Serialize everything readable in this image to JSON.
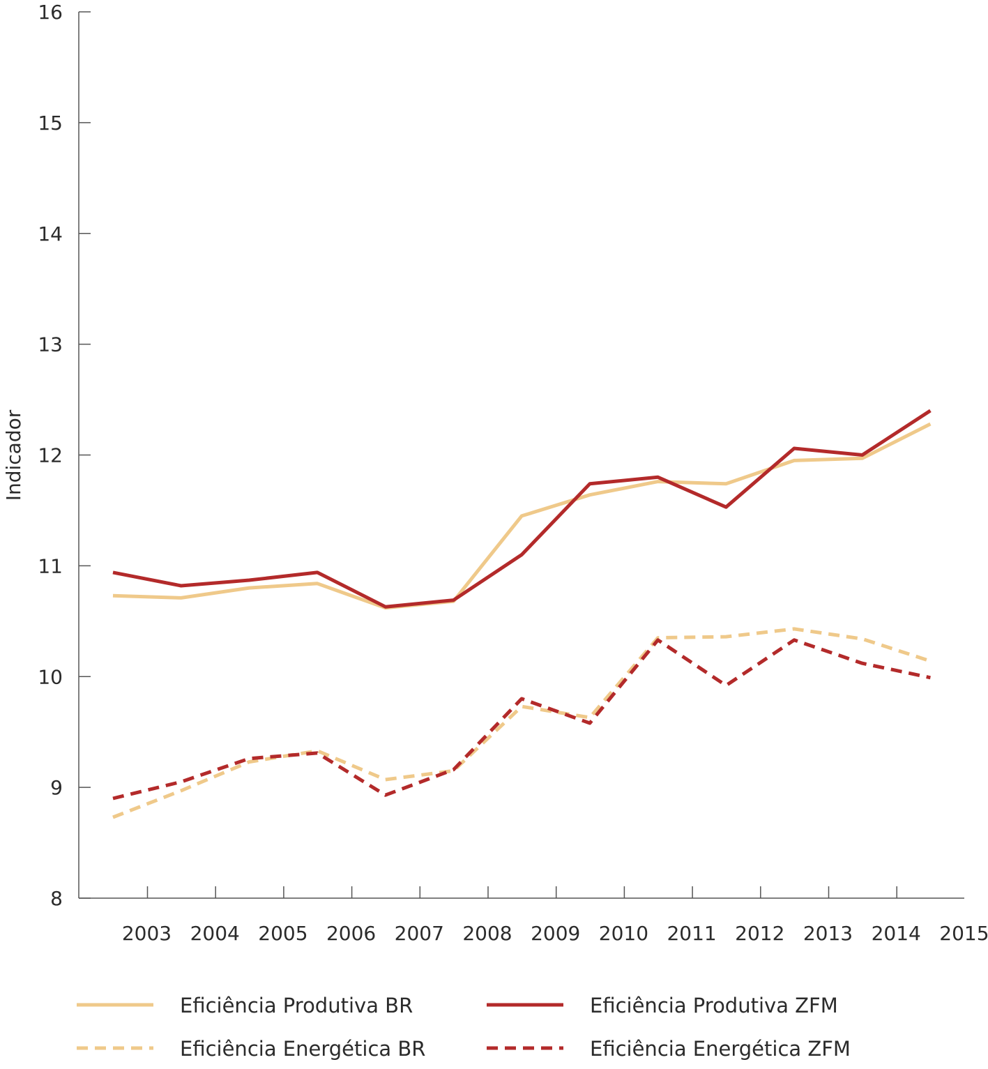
{
  "chart_data": {
    "type": "line",
    "title": "",
    "xlabel": "",
    "ylabel": "Indicador",
    "ylim": [
      8,
      16
    ],
    "yticks": [
      8,
      9,
      10,
      11,
      12,
      13,
      14,
      15,
      16
    ],
    "x": [
      "2003",
      "2004",
      "2005",
      "2006",
      "2007",
      "2008",
      "2009",
      "2010",
      "2011",
      "2012",
      "2013",
      "2014",
      "2015"
    ],
    "grid": false,
    "legend_position": "bottom",
    "series": [
      {
        "name": "Eficiência Produtiva BR",
        "color": "#EFC98A",
        "dash": "solid",
        "values": [
          10.73,
          10.71,
          10.8,
          10.84,
          10.62,
          10.68,
          11.45,
          11.64,
          11.76,
          11.74,
          11.95,
          11.97,
          12.28
        ]
      },
      {
        "name": "Eficiência Produtiva ZFM",
        "color": "#B32A2A",
        "dash": "solid",
        "values": [
          10.94,
          10.82,
          10.87,
          10.94,
          10.63,
          10.69,
          11.1,
          11.74,
          11.8,
          11.53,
          12.06,
          12.0,
          12.4
        ]
      },
      {
        "name": "Eficiência Energética BR",
        "color": "#EFC98A",
        "dash": "dashed",
        "values": [
          8.73,
          8.97,
          9.23,
          9.33,
          9.07,
          9.15,
          9.73,
          9.63,
          10.35,
          10.36,
          10.43,
          10.34,
          10.14
        ]
      },
      {
        "name": "Eficiência Energética ZFM",
        "color": "#B32A2A",
        "dash": "dashed",
        "values": [
          8.9,
          9.05,
          9.26,
          9.31,
          8.93,
          9.16,
          9.8,
          9.58,
          10.33,
          9.92,
          10.33,
          10.12,
          9.99
        ]
      }
    ]
  }
}
